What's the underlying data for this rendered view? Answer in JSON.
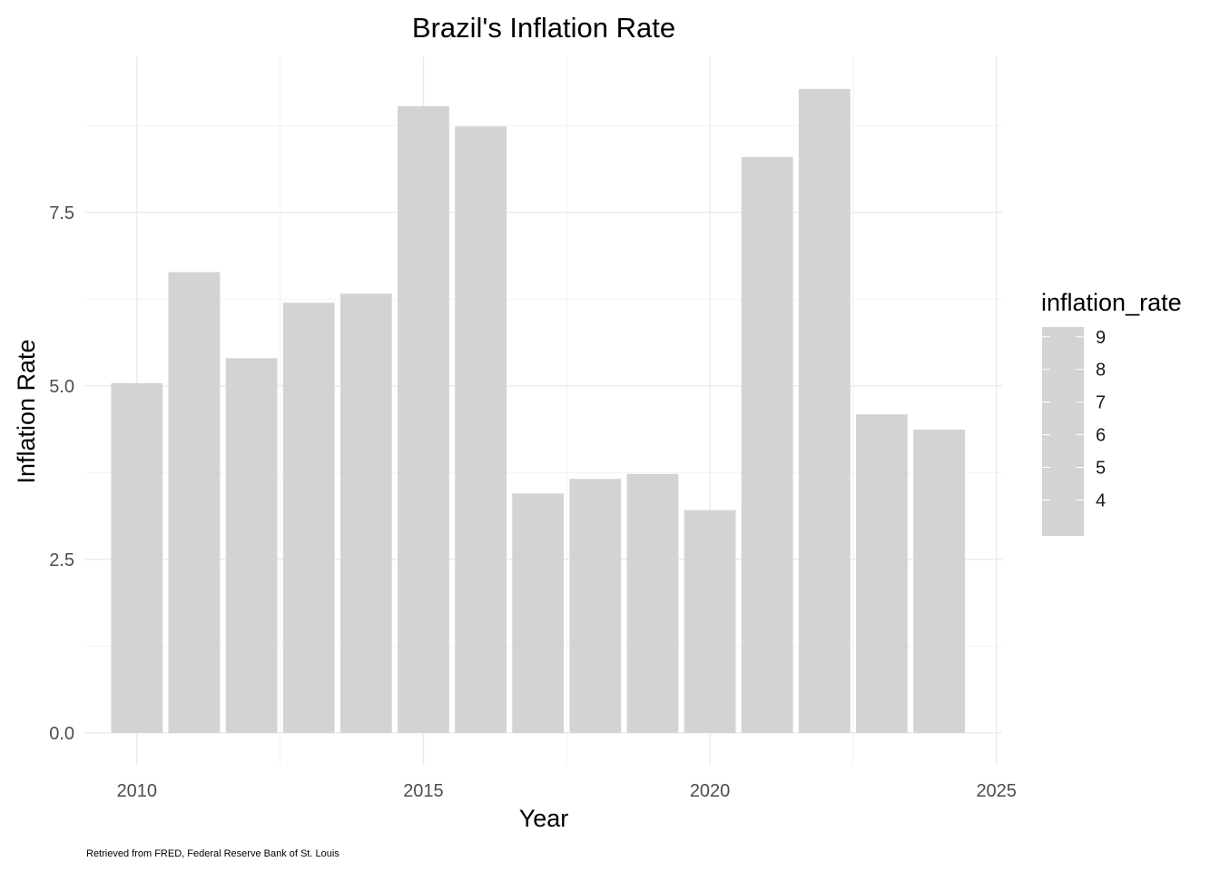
{
  "chart_data": {
    "type": "bar",
    "title": "Brazil's Inflation Rate",
    "xlabel": "Year",
    "ylabel": "Inflation Rate",
    "caption": "Retrieved from FRED, Federal Reserve Bank of St. Louis",
    "x": [
      2010,
      2011,
      2012,
      2013,
      2014,
      2015,
      2016,
      2017,
      2018,
      2019,
      2020,
      2021,
      2022,
      2023,
      2024
    ],
    "values": [
      5.04,
      6.64,
      5.4,
      6.2,
      6.33,
      9.03,
      8.74,
      3.45,
      3.66,
      3.73,
      3.21,
      8.3,
      9.28,
      4.59,
      4.37
    ],
    "xlim": [
      2009.1,
      2025.1
    ],
    "ylim": [
      -0.46,
      9.75
    ],
    "x_ticks": [
      "2010",
      "2015",
      "2020",
      "2025"
    ],
    "y_ticks": [
      "0.0",
      "2.5",
      "5.0",
      "7.5"
    ],
    "bar_color": "#d3d3d3",
    "grid": true,
    "legend": {
      "title": "inflation_rate",
      "placement": "right",
      "labels": [
        "9",
        "8",
        "7",
        "6",
        "5",
        "4"
      ]
    }
  }
}
